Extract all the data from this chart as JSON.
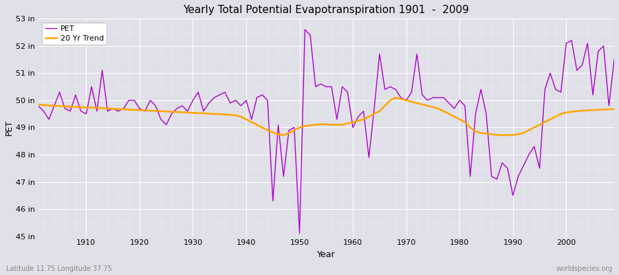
{
  "title": "Yearly Total Potential Evapotranspiration 1901  -  2009",
  "xlabel": "Year",
  "ylabel": "PET",
  "bottom_left": "Latitude 11.75 Longitude 37.75",
  "bottom_right": "worldspecies.org",
  "ylim": [
    45,
    53
  ],
  "yticks": [
    45,
    46,
    47,
    48,
    49,
    50,
    51,
    52,
    53
  ],
  "ytick_labels": [
    "45 in",
    "46 in",
    "47 in",
    "48 in",
    "49 in",
    "50 in",
    "51 in",
    "52 in",
    "53 in"
  ],
  "xlim": [
    1901,
    2009
  ],
  "xticks": [
    1910,
    1920,
    1930,
    1940,
    1950,
    1960,
    1970,
    1980,
    1990,
    2000
  ],
  "pet_color": "#aa00cc",
  "trend_color": "#ffa500",
  "bg_color": "#e0e0e8",
  "legend_labels": [
    "PET",
    "20 Yr Trend"
  ],
  "years": [
    1901,
    1902,
    1903,
    1904,
    1905,
    1906,
    1907,
    1908,
    1909,
    1910,
    1911,
    1912,
    1913,
    1914,
    1915,
    1916,
    1917,
    1918,
    1919,
    1920,
    1921,
    1922,
    1923,
    1924,
    1925,
    1926,
    1927,
    1928,
    1929,
    1930,
    1931,
    1932,
    1933,
    1934,
    1935,
    1936,
    1937,
    1938,
    1939,
    1940,
    1941,
    1942,
    1943,
    1944,
    1945,
    1946,
    1947,
    1948,
    1949,
    1950,
    1951,
    1952,
    1953,
    1954,
    1955,
    1956,
    1957,
    1958,
    1959,
    1960,
    1961,
    1962,
    1963,
    1964,
    1965,
    1966,
    1967,
    1968,
    1969,
    1970,
    1971,
    1972,
    1973,
    1974,
    1975,
    1976,
    1977,
    1978,
    1979,
    1980,
    1981,
    1982,
    1983,
    1984,
    1985,
    1986,
    1987,
    1988,
    1989,
    1990,
    1991,
    1992,
    1993,
    1994,
    1995,
    1996,
    1997,
    1998,
    1999,
    2000,
    2001,
    2002,
    2003,
    2004,
    2005,
    2006,
    2007,
    2008,
    2009
  ],
  "pet_values": [
    49.8,
    49.6,
    49.3,
    49.8,
    50.3,
    49.7,
    49.6,
    50.2,
    49.6,
    49.5,
    50.5,
    49.6,
    51.1,
    49.6,
    49.7,
    49.6,
    49.7,
    50.0,
    50.0,
    49.7,
    49.6,
    50.0,
    49.8,
    49.3,
    49.1,
    49.5,
    49.7,
    49.8,
    49.6,
    50.0,
    50.3,
    49.6,
    49.9,
    50.1,
    50.2,
    50.3,
    49.9,
    50.0,
    49.8,
    50.0,
    49.3,
    50.1,
    50.2,
    50.0,
    46.3,
    49.1,
    47.2,
    48.9,
    49.0,
    45.1,
    52.6,
    52.4,
    50.5,
    50.6,
    50.5,
    50.5,
    49.3,
    50.5,
    50.3,
    49.0,
    49.4,
    49.6,
    47.9,
    49.7,
    51.7,
    50.4,
    50.5,
    50.4,
    50.1,
    50.0,
    50.3,
    51.7,
    50.2,
    50.0,
    50.1,
    50.1,
    50.1,
    49.9,
    49.7,
    50.0,
    49.8,
    47.2,
    49.5,
    50.4,
    49.5,
    47.2,
    47.1,
    47.7,
    47.5,
    46.5,
    47.2,
    47.6,
    48.0,
    48.3,
    47.5,
    50.4,
    51.0,
    50.4,
    50.3,
    52.1,
    52.2,
    51.1,
    51.3,
    52.1,
    50.2,
    51.8,
    52.0,
    49.8,
    51.5
  ],
  "trend_values": [
    49.85,
    49.83,
    49.81,
    49.8,
    49.79,
    49.78,
    49.77,
    49.76,
    49.75,
    49.74,
    49.73,
    49.72,
    49.71,
    49.7,
    49.69,
    49.68,
    49.67,
    49.66,
    49.65,
    49.64,
    49.63,
    49.62,
    49.61,
    49.6,
    49.59,
    49.58,
    49.57,
    49.56,
    49.55,
    49.54,
    49.53,
    49.52,
    49.51,
    49.5,
    49.49,
    49.48,
    49.47,
    49.45,
    49.4,
    49.3,
    49.2,
    49.1,
    49.0,
    48.9,
    48.82,
    48.75,
    48.72,
    48.8,
    48.9,
    49.0,
    49.05,
    49.08,
    49.1,
    49.12,
    49.12,
    49.1,
    49.1,
    49.1,
    49.15,
    49.2,
    49.25,
    49.3,
    49.4,
    49.5,
    49.6,
    49.8,
    50.0,
    50.1,
    50.05,
    50.0,
    49.95,
    49.9,
    49.85,
    49.8,
    49.75,
    49.7,
    49.6,
    49.5,
    49.4,
    49.3,
    49.2,
    49.0,
    48.85,
    48.8,
    48.78,
    48.75,
    48.73,
    48.72,
    48.72,
    48.73,
    48.75,
    48.8,
    48.9,
    49.0,
    49.1,
    49.2,
    49.3,
    49.4,
    49.5,
    49.55,
    49.58,
    49.6,
    49.62,
    49.63,
    49.64,
    49.65,
    49.66,
    49.67,
    49.68
  ]
}
